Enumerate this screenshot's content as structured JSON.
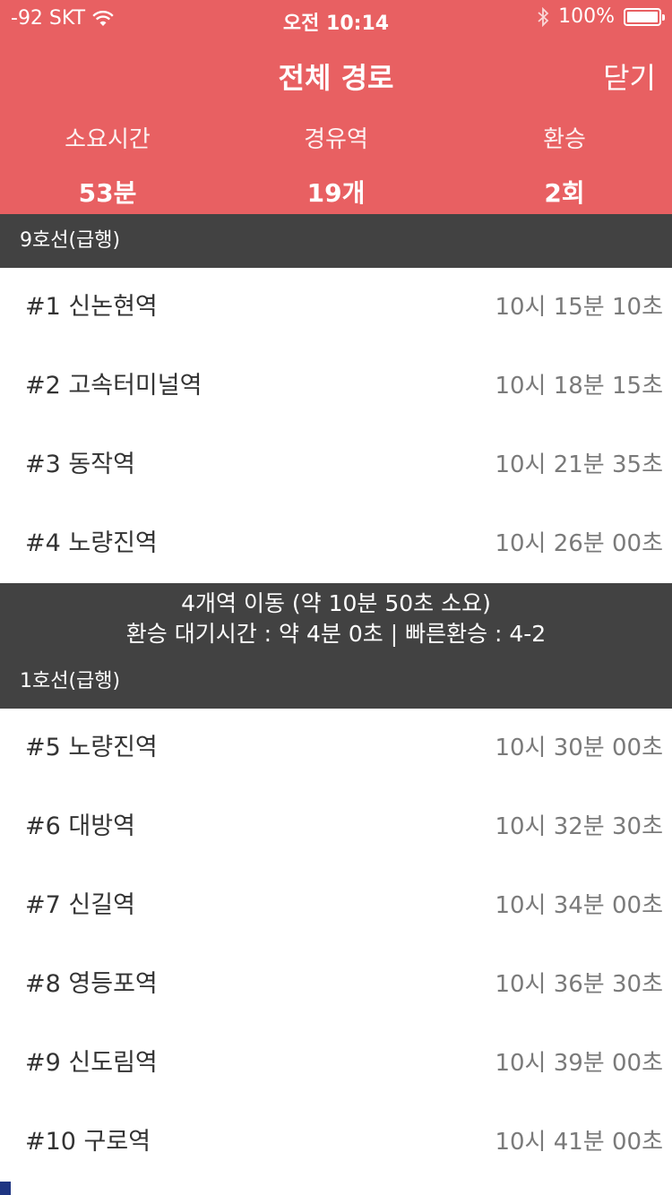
{
  "status": {
    "carrier": "-92 SKT",
    "time": "오전 10:14",
    "battery": "100%"
  },
  "nav": {
    "title": "전체 경로",
    "close_label": "닫기"
  },
  "summary": [
    {
      "label": "소요시간",
      "value": "53분"
    },
    {
      "label": "경유역",
      "value": "19개"
    },
    {
      "label": "환승",
      "value": "2회"
    }
  ],
  "segments": [
    {
      "line_name": "9호선(급행)",
      "color": "#B08A45",
      "stations": [
        {
          "name": "#1 신논현역",
          "time": "10시 15분 10초"
        },
        {
          "name": "#2 고속터미널역",
          "time": "10시 18분 15초"
        },
        {
          "name": "#3 동작역",
          "time": "10시 21분 35초"
        },
        {
          "name": "#4 노량진역",
          "time": "10시 26분 00초"
        }
      ]
    },
    {
      "line_name": "1호선(급행)",
      "color": "#1E3582",
      "stations": [
        {
          "name": "#5 노량진역",
          "time": "10시 30분 00초"
        },
        {
          "name": "#6 대방역",
          "time": "10시 32분 30초"
        },
        {
          "name": "#7 신길역",
          "time": "10시 34분 00초"
        },
        {
          "name": "#8 영등포역",
          "time": "10시 36분 30초"
        },
        {
          "name": "#9 신도림역",
          "time": "10시 39분 00초"
        },
        {
          "name": "#10 구로역",
          "time": "10시 41분 00초"
        }
      ]
    }
  ],
  "transfer": {
    "line1": "4개역 이동 (약 10분 50초 소요)",
    "line2": "환승 대기시간 : 약 4분 0초 | 빠른환승 : 4-2"
  },
  "colors": {
    "header_bg": "#E86062",
    "section_bg": "#424242"
  }
}
